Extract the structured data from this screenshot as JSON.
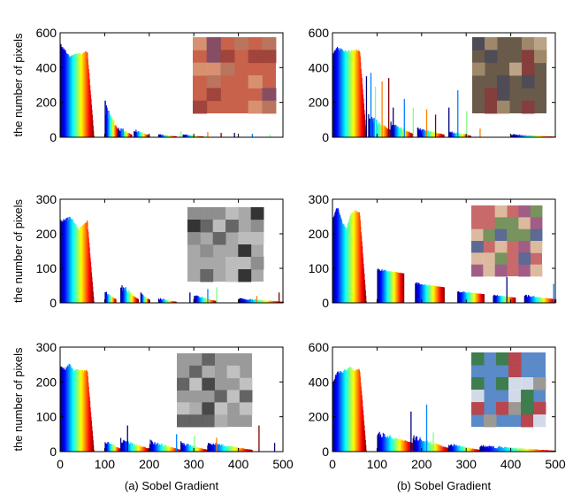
{
  "chart_data": [
    {
      "panel": "row1-left",
      "type": "bar",
      "ylabel": "the number of pixels",
      "xlim": [
        0,
        500
      ],
      "ylim": [
        0,
        600
      ],
      "yticks": [
        0,
        200,
        400,
        600
      ],
      "xticks": [],
      "thumbnail": "lena-color-photo",
      "thumb_colors": [
        "#c8624a",
        "#9a3f3a",
        "#d99a78",
        "#7a4a6a",
        "#b87860"
      ],
      "series": {
        "main": [
          [
            0,
            540
          ],
          [
            10,
            505
          ],
          [
            20,
            470
          ],
          [
            30,
            480
          ],
          [
            40,
            485
          ],
          [
            50,
            490
          ],
          [
            60,
            500
          ],
          [
            75,
            0
          ]
        ],
        "clusters": [
          {
            "start": 100,
            "end": 130,
            "peak": 210,
            "base": 40
          },
          {
            "start": 130,
            "end": 160,
            "peak": 60,
            "base": 15
          },
          {
            "start": 165,
            "end": 200,
            "peak": 50,
            "base": 10
          },
          {
            "start": 220,
            "end": 260,
            "peak": 20,
            "base": 5
          },
          {
            "start": 275,
            "end": 320,
            "peak": 18,
            "base": 4
          }
        ],
        "spikes": [
          [
            100,
            210
          ],
          [
            140,
            50
          ],
          [
            270,
            35
          ],
          [
            330,
            30
          ],
          [
            360,
            25
          ],
          [
            390,
            25
          ],
          [
            430,
            20
          ],
          [
            470,
            15
          ]
        ]
      }
    },
    {
      "panel": "row1-right",
      "type": "bar",
      "ylabel": "",
      "xlim": [
        0,
        500
      ],
      "ylim": [
        0,
        600
      ],
      "yticks": [
        0,
        200,
        400,
        600
      ],
      "xticks": [],
      "thumbnail": "painting-photo",
      "thumb_colors": [
        "#6a5a4a",
        "#a89070",
        "#4a4a5a",
        "#c8b090",
        "#8a3a3a"
      ],
      "series": {
        "main": [
          [
            0,
            490
          ],
          [
            10,
            520
          ],
          [
            20,
            510
          ],
          [
            30,
            500
          ],
          [
            40,
            500
          ],
          [
            50,
            505
          ],
          [
            60,
            510
          ],
          [
            75,
            0
          ]
        ],
        "clusters": [
          {
            "start": 80,
            "end": 130,
            "peak": 140,
            "base": 40
          },
          {
            "start": 130,
            "end": 180,
            "peak": 90,
            "base": 20
          },
          {
            "start": 190,
            "end": 250,
            "peak": 60,
            "base": 15
          },
          {
            "start": 260,
            "end": 310,
            "peak": 40,
            "base": 8
          },
          {
            "start": 400,
            "end": 500,
            "peak": 20,
            "base": 3
          }
        ],
        "spikes": [
          [
            75,
            350
          ],
          [
            85,
            370
          ],
          [
            95,
            290
          ],
          [
            110,
            320
          ],
          [
            125,
            340
          ],
          [
            135,
            170
          ],
          [
            160,
            220
          ],
          [
            180,
            170
          ],
          [
            210,
            160
          ],
          [
            230,
            130
          ],
          [
            260,
            170
          ],
          [
            280,
            270
          ],
          [
            300,
            150
          ],
          [
            330,
            50
          ]
        ]
      }
    },
    {
      "panel": "row2-left",
      "type": "bar",
      "ylabel": "the number of pixels",
      "xlim": [
        0,
        500
      ],
      "ylim": [
        0,
        300
      ],
      "yticks": [
        0,
        100,
        200,
        300
      ],
      "xticks": [],
      "thumbnail": "cameraman-grayscale-photo",
      "thumb_colors": [
        "#a8a8a8",
        "#5a5a5a",
        "#202020",
        "#c0c0c0",
        "#8a8a8a"
      ],
      "series": {
        "main": [
          [
            0,
            240
          ],
          [
            10,
            245
          ],
          [
            20,
            250
          ],
          [
            30,
            240
          ],
          [
            40,
            215
          ],
          [
            50,
            230
          ],
          [
            60,
            240
          ],
          [
            75,
            0
          ]
        ],
        "clusters": [
          {
            "start": 100,
            "end": 125,
            "peak": 35,
            "base": 10
          },
          {
            "start": 135,
            "end": 175,
            "peak": 60,
            "base": 10
          },
          {
            "start": 180,
            "end": 200,
            "peak": 35,
            "base": 8
          },
          {
            "start": 220,
            "end": 260,
            "peak": 15,
            "base": 3
          },
          {
            "start": 300,
            "end": 350,
            "peak": 25,
            "base": 5
          },
          {
            "start": 400,
            "end": 500,
            "peak": 15,
            "base": 3
          }
        ],
        "spikes": [
          [
            290,
            30
          ],
          [
            330,
            40
          ],
          [
            350,
            45
          ],
          [
            440,
            20
          ],
          [
            490,
            30
          ]
        ]
      }
    },
    {
      "panel": "row2-right",
      "type": "bar",
      "ylabel": "",
      "xlim": [
        0,
        500
      ],
      "ylim": [
        0,
        300
      ],
      "yticks": [
        0,
        100,
        200,
        300
      ],
      "xticks": [],
      "thumbnail": "illustration-girl-photo",
      "thumb_colors": [
        "#c86a6a",
        "#4a6a9a",
        "#e0c8a8",
        "#6a9a5a",
        "#9a5a8a"
      ],
      "series": {
        "main": [
          [
            0,
            250
          ],
          [
            10,
            280
          ],
          [
            20,
            240
          ],
          [
            30,
            215
          ],
          [
            40,
            260
          ],
          [
            50,
            270
          ],
          [
            60,
            265
          ],
          [
            75,
            0
          ]
        ],
        "clusters": [
          {
            "start": 100,
            "end": 160,
            "peak": 100,
            "base": 85
          },
          {
            "start": 185,
            "end": 250,
            "peak": 60,
            "base": 45
          },
          {
            "start": 280,
            "end": 340,
            "peak": 35,
            "base": 25
          },
          {
            "start": 360,
            "end": 410,
            "peak": 25,
            "base": 15
          },
          {
            "start": 430,
            "end": 500,
            "peak": 25,
            "base": 10
          }
        ],
        "spikes": [
          [
            390,
            75
          ],
          [
            495,
            55
          ]
        ]
      }
    },
    {
      "panel": "row3-left",
      "type": "bar",
      "ylabel": "the number of pixels",
      "xlim": [
        0,
        500
      ],
      "ylim": [
        0,
        300
      ],
      "yticks": [
        0,
        100,
        200,
        300
      ],
      "xticks": [
        0,
        100,
        200,
        300,
        400,
        500
      ],
      "caption": "(a) Sobel Gradient",
      "thumbnail": "house-grayscale-photo",
      "thumb_colors": [
        "#9a9a9a",
        "#5a5a5a",
        "#c8c8c8",
        "#3a3a3a",
        "#b0b0b0"
      ],
      "series": {
        "main": [
          [
            0,
            245
          ],
          [
            10,
            240
          ],
          [
            20,
            255
          ],
          [
            30,
            235
          ],
          [
            40,
            240
          ],
          [
            50,
            235
          ],
          [
            60,
            235
          ],
          [
            75,
            0
          ]
        ],
        "clusters": [
          {
            "start": 100,
            "end": 135,
            "peak": 35,
            "base": 8
          },
          {
            "start": 135,
            "end": 200,
            "peak": 40,
            "base": 8
          },
          {
            "start": 200,
            "end": 270,
            "peak": 35,
            "base": 5
          },
          {
            "start": 270,
            "end": 330,
            "peak": 30,
            "base": 5
          },
          {
            "start": 330,
            "end": 430,
            "peak": 30,
            "base": 5
          }
        ],
        "spikes": [
          [
            150,
            75
          ],
          [
            260,
            50
          ],
          [
            300,
            45
          ],
          [
            350,
            40
          ],
          [
            445,
            75
          ],
          [
            480,
            25
          ]
        ]
      }
    },
    {
      "panel": "row3-right",
      "type": "bar",
      "ylabel": "",
      "xlim": [
        0,
        500
      ],
      "ylim": [
        0,
        600
      ],
      "yticks": [
        0,
        200,
        400,
        600
      ],
      "xticks": [
        0,
        100,
        200,
        300,
        400,
        500
      ],
      "caption": "(b) Sobel Gradient",
      "thumbnail": "building-flowers-photo",
      "thumb_colors": [
        "#5a8ac8",
        "#c83a3a",
        "#3a7a3a",
        "#a89a8a",
        "#e8e8f0"
      ],
      "series": {
        "main": [
          [
            0,
            400
          ],
          [
            10,
            470
          ],
          [
            20,
            460
          ],
          [
            30,
            480
          ],
          [
            40,
            490
          ],
          [
            50,
            470
          ],
          [
            60,
            480
          ],
          [
            75,
            0
          ]
        ],
        "clusters": [
          {
            "start": 100,
            "end": 180,
            "peak": 120,
            "base": 50
          },
          {
            "start": 180,
            "end": 260,
            "peak": 100,
            "base": 20
          },
          {
            "start": 260,
            "end": 330,
            "peak": 50,
            "base": 10
          },
          {
            "start": 330,
            "end": 500,
            "peak": 40,
            "base": 5
          }
        ],
        "spikes": [
          [
            175,
            230
          ],
          [
            210,
            270
          ],
          [
            225,
            110
          ]
        ]
      }
    }
  ]
}
